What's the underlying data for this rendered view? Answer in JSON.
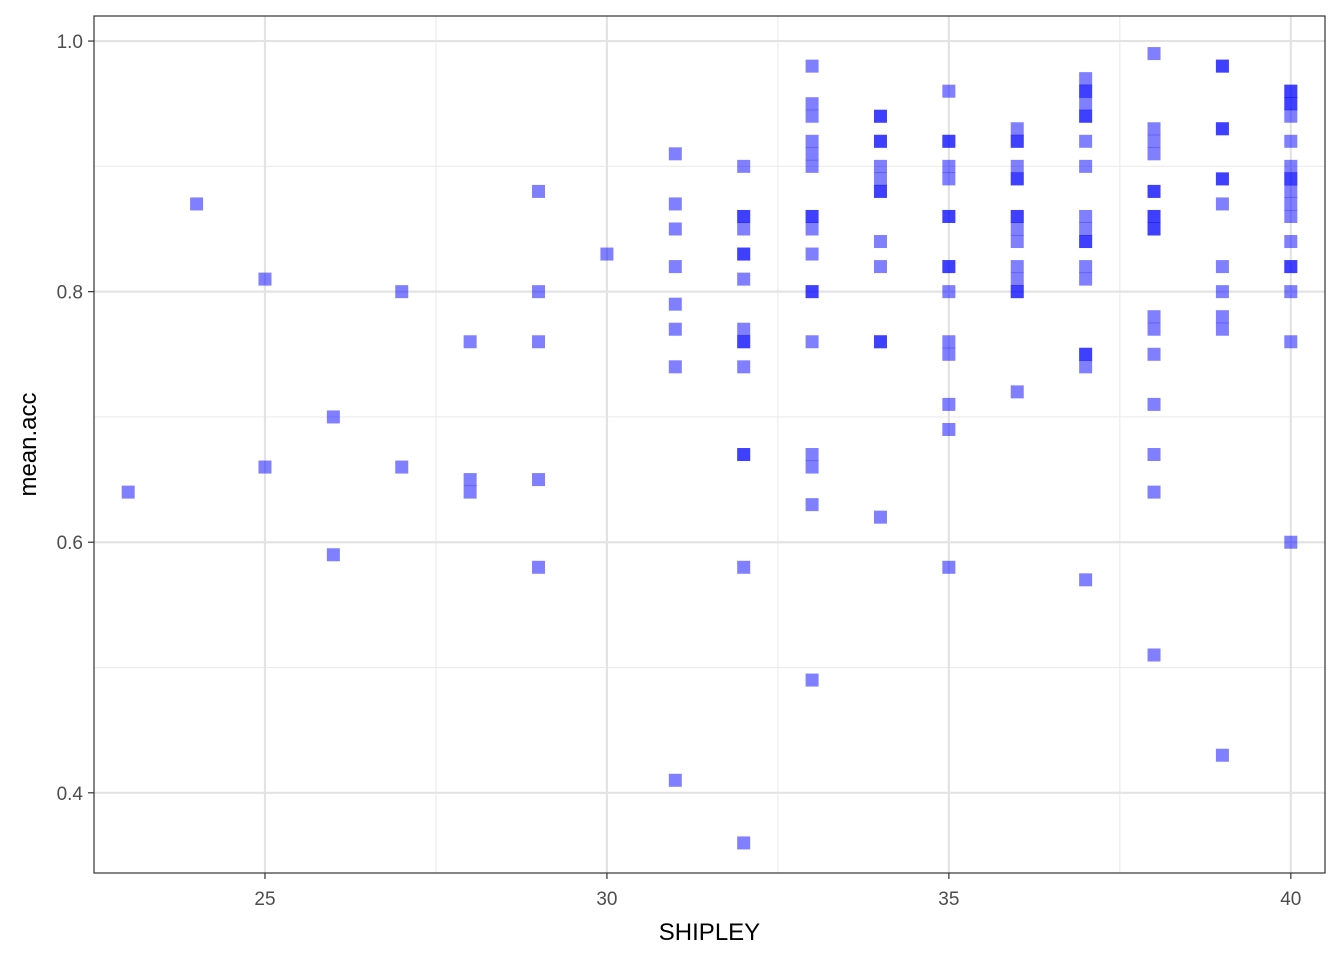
{
  "chart_data": {
    "type": "scatter",
    "xlabel": "SHIPLEY",
    "ylabel": "mean.acc",
    "xlim": [
      22.5,
      40.5
    ],
    "ylim": [
      0.336,
      1.02
    ],
    "x_ticks": [
      25,
      30,
      35,
      40
    ],
    "x_tick_labels": [
      "25",
      "30",
      "35",
      "40"
    ],
    "y_ticks": [
      0.4,
      0.6,
      0.8,
      1.0
    ],
    "y_tick_labels": [
      "0.4",
      "0.6",
      "0.8",
      "1.0"
    ],
    "x_minor_ticks": [
      22.5,
      27.5,
      32.5,
      37.5
    ],
    "y_minor_ticks": [
      0.5,
      0.7,
      0.9
    ],
    "grid": true,
    "marker": "square",
    "point_color": "#0000ff",
    "point_alpha": 0.5,
    "points": [
      [
        23,
        0.64
      ],
      [
        24,
        0.87
      ],
      [
        25,
        0.81
      ],
      [
        25,
        0.66
      ],
      [
        26,
        0.7
      ],
      [
        26,
        0.59
      ],
      [
        27,
        0.8
      ],
      [
        27,
        0.66
      ],
      [
        28,
        0.76
      ],
      [
        28,
        0.65
      ],
      [
        28,
        0.64
      ],
      [
        29,
        0.88
      ],
      [
        29,
        0.8
      ],
      [
        29,
        0.76
      ],
      [
        29,
        0.65
      ],
      [
        29,
        0.58
      ],
      [
        30,
        0.83
      ],
      [
        31,
        0.91
      ],
      [
        31,
        0.87
      ],
      [
        31,
        0.85
      ],
      [
        31,
        0.82
      ],
      [
        31,
        0.79
      ],
      [
        31,
        0.77
      ],
      [
        31,
        0.74
      ],
      [
        31,
        0.41
      ],
      [
        32,
        0.9
      ],
      [
        32,
        0.86
      ],
      [
        32,
        0.86
      ],
      [
        32,
        0.85
      ],
      [
        32,
        0.83
      ],
      [
        32,
        0.83
      ],
      [
        32,
        0.81
      ],
      [
        32,
        0.77
      ],
      [
        32,
        0.76
      ],
      [
        32,
        0.76
      ],
      [
        32,
        0.74
      ],
      [
        32,
        0.67
      ],
      [
        32,
        0.67
      ],
      [
        32,
        0.58
      ],
      [
        32,
        0.36
      ],
      [
        33,
        0.98
      ],
      [
        33,
        0.95
      ],
      [
        33,
        0.94
      ],
      [
        33,
        0.92
      ],
      [
        33,
        0.91
      ],
      [
        33,
        0.9
      ],
      [
        33,
        0.86
      ],
      [
        33,
        0.86
      ],
      [
        33,
        0.85
      ],
      [
        33,
        0.83
      ],
      [
        33,
        0.8
      ],
      [
        33,
        0.8
      ],
      [
        33,
        0.76
      ],
      [
        33,
        0.67
      ],
      [
        33,
        0.66
      ],
      [
        33,
        0.63
      ],
      [
        33,
        0.49
      ],
      [
        34,
        0.94
      ],
      [
        34,
        0.94
      ],
      [
        34,
        0.92
      ],
      [
        34,
        0.92
      ],
      [
        34,
        0.9
      ],
      [
        34,
        0.89
      ],
      [
        34,
        0.88
      ],
      [
        34,
        0.88
      ],
      [
        34,
        0.84
      ],
      [
        34,
        0.82
      ],
      [
        34,
        0.76
      ],
      [
        34,
        0.76
      ],
      [
        34,
        0.62
      ],
      [
        35,
        0.96
      ],
      [
        35,
        0.92
      ],
      [
        35,
        0.92
      ],
      [
        35,
        0.9
      ],
      [
        35,
        0.89
      ],
      [
        35,
        0.86
      ],
      [
        35,
        0.86
      ],
      [
        35,
        0.82
      ],
      [
        35,
        0.82
      ],
      [
        35,
        0.8
      ],
      [
        35,
        0.76
      ],
      [
        35,
        0.75
      ],
      [
        35,
        0.71
      ],
      [
        35,
        0.69
      ],
      [
        35,
        0.58
      ],
      [
        36,
        0.93
      ],
      [
        36,
        0.92
      ],
      [
        36,
        0.92
      ],
      [
        36,
        0.9
      ],
      [
        36,
        0.89
      ],
      [
        36,
        0.89
      ],
      [
        36,
        0.86
      ],
      [
        36,
        0.86
      ],
      [
        36,
        0.85
      ],
      [
        36,
        0.84
      ],
      [
        36,
        0.82
      ],
      [
        36,
        0.81
      ],
      [
        36,
        0.8
      ],
      [
        36,
        0.8
      ],
      [
        36,
        0.72
      ],
      [
        37,
        0.97
      ],
      [
        37,
        0.96
      ],
      [
        37,
        0.96
      ],
      [
        37,
        0.95
      ],
      [
        37,
        0.94
      ],
      [
        37,
        0.94
      ],
      [
        37,
        0.92
      ],
      [
        37,
        0.9
      ],
      [
        37,
        0.86
      ],
      [
        37,
        0.85
      ],
      [
        37,
        0.84
      ],
      [
        37,
        0.84
      ],
      [
        37,
        0.82
      ],
      [
        37,
        0.81
      ],
      [
        37,
        0.75
      ],
      [
        37,
        0.75
      ],
      [
        37,
        0.74
      ],
      [
        37,
        0.57
      ],
      [
        38,
        0.99
      ],
      [
        38,
        0.93
      ],
      [
        38,
        0.92
      ],
      [
        38,
        0.91
      ],
      [
        38,
        0.88
      ],
      [
        38,
        0.88
      ],
      [
        38,
        0.86
      ],
      [
        38,
        0.86
      ],
      [
        38,
        0.85
      ],
      [
        38,
        0.85
      ],
      [
        38,
        0.78
      ],
      [
        38,
        0.77
      ],
      [
        38,
        0.75
      ],
      [
        38,
        0.71
      ],
      [
        38,
        0.67
      ],
      [
        38,
        0.64
      ],
      [
        38,
        0.51
      ],
      [
        39,
        0.98
      ],
      [
        39,
        0.98
      ],
      [
        39,
        0.93
      ],
      [
        39,
        0.93
      ],
      [
        39,
        0.89
      ],
      [
        39,
        0.89
      ],
      [
        39,
        0.87
      ],
      [
        39,
        0.82
      ],
      [
        39,
        0.8
      ],
      [
        39,
        0.78
      ],
      [
        39,
        0.77
      ],
      [
        39,
        0.43
      ],
      [
        40,
        0.96
      ],
      [
        40,
        0.96
      ],
      [
        40,
        0.95
      ],
      [
        40,
        0.95
      ],
      [
        40,
        0.94
      ],
      [
        40,
        0.92
      ],
      [
        40,
        0.9
      ],
      [
        40,
        0.89
      ],
      [
        40,
        0.89
      ],
      [
        40,
        0.88
      ],
      [
        40,
        0.87
      ],
      [
        40,
        0.86
      ],
      [
        40,
        0.84
      ],
      [
        40,
        0.82
      ],
      [
        40,
        0.82
      ],
      [
        40,
        0.8
      ],
      [
        40,
        0.76
      ],
      [
        40,
        0.6
      ]
    ]
  }
}
